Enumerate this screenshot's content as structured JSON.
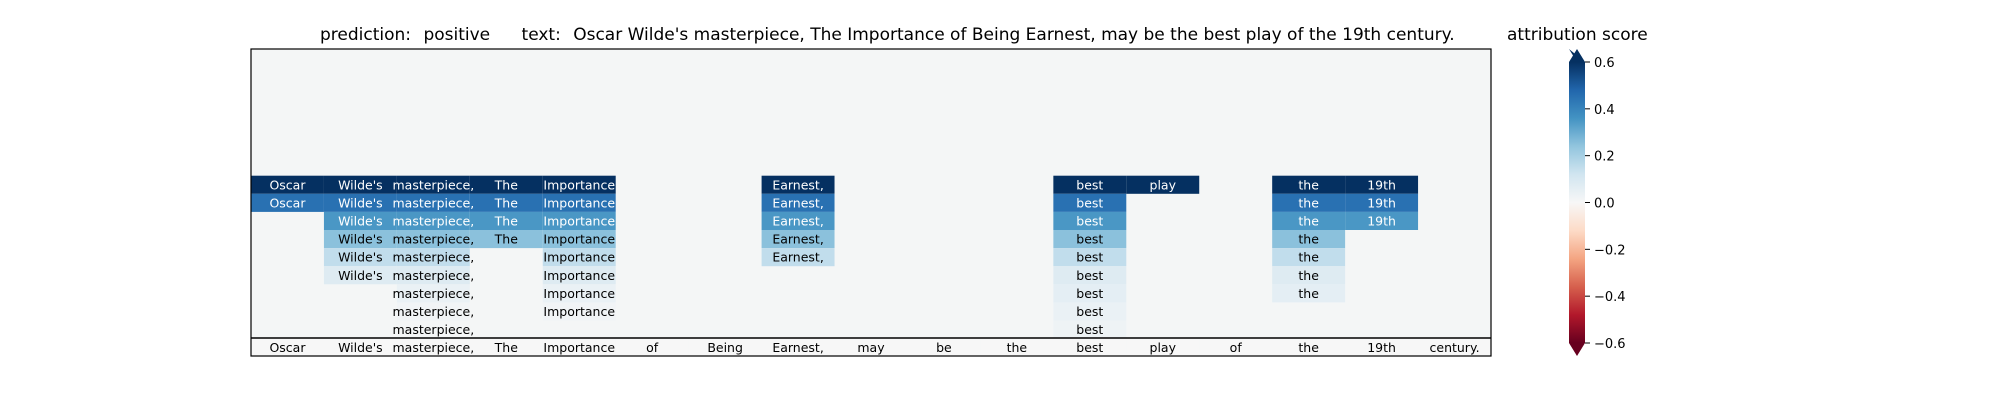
{
  "header": {
    "prediction_label": "prediction:",
    "prediction_value": "positive",
    "text_label": "text:",
    "text_value": "Oscar Wilde's masterpiece, The Importance of Being Earnest, may be the best play of the 19th century."
  },
  "chart_data": {
    "type": "heatmap",
    "tokens": [
      "Oscar",
      "Wilde's",
      "masterpiece,",
      "The",
      "Importance",
      "of",
      "Being",
      "Earnest,",
      "may",
      "be",
      "the",
      "best",
      "play",
      "of",
      "the",
      "19th",
      "century."
    ],
    "rows": [
      [
        null,
        null,
        null,
        null,
        null,
        null,
        null,
        null,
        null,
        null,
        null,
        null,
        null,
        null,
        null,
        null,
        null
      ],
      [
        null,
        null,
        null,
        null,
        null,
        null,
        null,
        null,
        null,
        null,
        null,
        null,
        null,
        null,
        null,
        null,
        null
      ],
      [
        null,
        null,
        null,
        null,
        null,
        null,
        null,
        null,
        null,
        null,
        null,
        null,
        null,
        null,
        null,
        null,
        null
      ],
      [
        null,
        null,
        null,
        null,
        null,
        null,
        null,
        null,
        null,
        null,
        null,
        null,
        null,
        null,
        null,
        null,
        null
      ],
      [
        null,
        null,
        null,
        null,
        null,
        null,
        null,
        null,
        null,
        null,
        null,
        null,
        null,
        null,
        null,
        null,
        null
      ],
      [
        null,
        null,
        null,
        null,
        null,
        null,
        null,
        null,
        null,
        null,
        null,
        null,
        null,
        null,
        null,
        null,
        null
      ],
      [
        null,
        null,
        null,
        null,
        null,
        null,
        null,
        null,
        null,
        null,
        null,
        null,
        null,
        null,
        null,
        null,
        null
      ],
      [
        0.62,
        0.62,
        0.62,
        0.62,
        0.62,
        null,
        null,
        0.62,
        null,
        null,
        null,
        0.62,
        0.62,
        null,
        0.62,
        0.62,
        null
      ],
      [
        0.45,
        0.45,
        0.45,
        0.45,
        0.45,
        null,
        null,
        0.45,
        null,
        null,
        null,
        0.45,
        null,
        null,
        0.45,
        0.45,
        null
      ],
      [
        null,
        0.35,
        0.35,
        0.35,
        0.35,
        null,
        null,
        0.35,
        null,
        null,
        null,
        0.35,
        null,
        null,
        0.35,
        0.35,
        null
      ],
      [
        null,
        0.25,
        0.25,
        0.25,
        0.25,
        null,
        null,
        0.25,
        null,
        null,
        null,
        0.25,
        null,
        null,
        0.25,
        null,
        null
      ],
      [
        null,
        0.15,
        0.15,
        null,
        0.15,
        null,
        null,
        0.15,
        null,
        null,
        null,
        0.15,
        null,
        null,
        0.15,
        null,
        null
      ],
      [
        null,
        0.08,
        0.08,
        null,
        0.08,
        null,
        null,
        null,
        null,
        null,
        null,
        0.08,
        null,
        null,
        0.08,
        null,
        null
      ],
      [
        null,
        null,
        0.04,
        null,
        0.04,
        null,
        null,
        null,
        null,
        null,
        null,
        0.06,
        null,
        null,
        0.06,
        null,
        null
      ],
      [
        null,
        null,
        0.02,
        null,
        0.02,
        null,
        null,
        null,
        null,
        null,
        null,
        0.04,
        null,
        null,
        null,
        null,
        null
      ],
      [
        null,
        null,
        0.01,
        null,
        null,
        null,
        null,
        null,
        null,
        null,
        null,
        0.03,
        null,
        null,
        null,
        null,
        null
      ],
      [
        0.0,
        0.0,
        0.0,
        0.0,
        0.0,
        0.0,
        0.0,
        0.0,
        0.0,
        0.0,
        0.0,
        0.0,
        0.0,
        0.0,
        0.0,
        0.0,
        0.0
      ]
    ],
    "colorbar": {
      "title": "attribution score",
      "min": -0.6,
      "max": 0.6,
      "ticks": [
        0.6,
        0.4,
        0.2,
        0.0,
        -0.2,
        -0.4,
        -0.6
      ],
      "tick_labels": [
        "0.6",
        "0.4",
        "0.2",
        "0.0",
        "−0.2",
        "−0.4",
        "−0.6"
      ],
      "colormap": "RdBu",
      "extend": "both"
    },
    "colors": {
      "background": "#f4f6f6",
      "neg_extreme": "#67001f",
      "pos_extreme": "#053061",
      "neutral": "#f7f7f7"
    }
  }
}
